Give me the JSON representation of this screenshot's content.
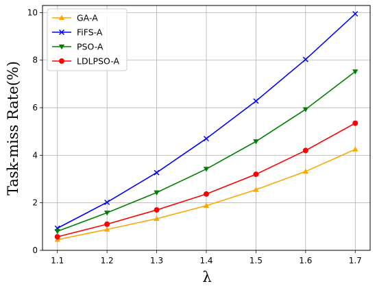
{
  "chart_data": {
    "type": "line",
    "title": "",
    "xlabel": "λ",
    "ylabel": "Task-miss Rate(%)",
    "x": [
      1.1,
      1.2,
      1.3,
      1.4,
      1.5,
      1.6,
      1.7
    ],
    "xticks": [
      "1.1",
      "1.2",
      "1.3",
      "1.4",
      "1.5",
      "1.6",
      "1.7"
    ],
    "yticks": [
      "0",
      "2",
      "4",
      "6",
      "8",
      "10"
    ],
    "xlim": [
      1.07,
      1.73
    ],
    "ylim": [
      0,
      10.3
    ],
    "grid": true,
    "legend_position": "top-left",
    "series": [
      {
        "name": "GA-A",
        "color": "#FFA500",
        "marker": "triangle-up",
        "values": [
          0.45,
          0.88,
          1.33,
          1.88,
          2.55,
          3.32,
          4.25
        ]
      },
      {
        "name": "FiFS-A",
        "color": "#0000FF",
        "marker": "x",
        "values": [
          0.93,
          2.02,
          3.27,
          4.7,
          6.28,
          8.03,
          9.95
        ]
      },
      {
        "name": "PSO-A",
        "color": "#008000",
        "marker": "triangle-down",
        "values": [
          0.8,
          1.58,
          2.43,
          3.42,
          4.58,
          5.93,
          7.52
        ]
      },
      {
        "name": "LDLPSO-A",
        "color": "#FF0000",
        "marker": "circle",
        "values": [
          0.57,
          1.1,
          1.7,
          2.37,
          3.2,
          4.2,
          5.35
        ]
      }
    ]
  }
}
